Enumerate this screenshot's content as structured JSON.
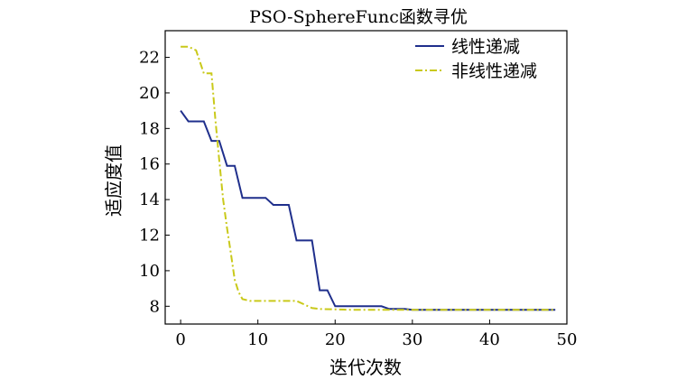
{
  "chart_data": {
    "type": "line",
    "title": "PSO-SphereFunc函数寻优",
    "xlabel": "迭代次数",
    "ylabel": "适应度值",
    "xlim": [
      -2,
      50
    ],
    "ylim": [
      7.0,
      23.5
    ],
    "xticks": [
      0,
      10,
      20,
      30,
      40,
      50
    ],
    "yticks": [
      8,
      10,
      12,
      14,
      16,
      18,
      20,
      22
    ],
    "legend_position": "top-right",
    "grid": false,
    "series": [
      {
        "name": "线性递减",
        "color": "#1f2f8c",
        "style": "solid",
        "points": [
          [
            0,
            19.0
          ],
          [
            1,
            18.4
          ],
          [
            3,
            18.4
          ],
          [
            4,
            17.3
          ],
          [
            5,
            17.3
          ],
          [
            6,
            15.9
          ],
          [
            7,
            15.9
          ],
          [
            8,
            14.1
          ],
          [
            11,
            14.1
          ],
          [
            12,
            13.7
          ],
          [
            14,
            13.7
          ],
          [
            15,
            11.7
          ],
          [
            17,
            11.7
          ],
          [
            18,
            8.9
          ],
          [
            19,
            8.9
          ],
          [
            20,
            8.0
          ],
          [
            26,
            8.0
          ],
          [
            27,
            7.85
          ],
          [
            29,
            7.85
          ],
          [
            30,
            7.8
          ],
          [
            48.5,
            7.8
          ]
        ]
      },
      {
        "name": "非线性递减",
        "color": "#c9c91a",
        "style": "dashdot",
        "points": [
          [
            0,
            22.6
          ],
          [
            1,
            22.6
          ],
          [
            2,
            22.4
          ],
          [
            3,
            21.1
          ],
          [
            4,
            21.1
          ],
          [
            4.5,
            18.5
          ],
          [
            5,
            16.2
          ],
          [
            5.5,
            14.0
          ],
          [
            6,
            12.4
          ],
          [
            6.5,
            11.0
          ],
          [
            7,
            9.5
          ],
          [
            7.5,
            8.8
          ],
          [
            8,
            8.4
          ],
          [
            9,
            8.3
          ],
          [
            10,
            8.3
          ],
          [
            15,
            8.3
          ],
          [
            16,
            8.1
          ],
          [
            17,
            7.9
          ],
          [
            18,
            7.85
          ],
          [
            22,
            7.8
          ],
          [
            48.5,
            7.8
          ]
        ]
      }
    ]
  }
}
